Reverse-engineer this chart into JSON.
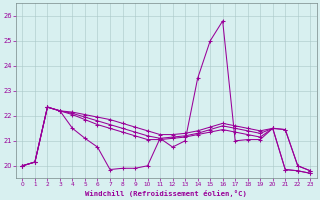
{
  "xlabel": "Windchill (Refroidissement éolien,°C)",
  "x_values": [
    0,
    1,
    2,
    3,
    4,
    5,
    6,
    7,
    8,
    9,
    10,
    11,
    12,
    13,
    14,
    15,
    16,
    17,
    18,
    19,
    20,
    21,
    22,
    23
  ],
  "s1": [
    20.0,
    20.15,
    22.35,
    22.2,
    21.5,
    21.1,
    20.75,
    19.85,
    19.9,
    19.9,
    20.0,
    21.1,
    20.75,
    21.0,
    23.5,
    25.0,
    25.8,
    21.0,
    21.05,
    21.05,
    21.5,
    19.85,
    19.8,
    19.7
  ],
  "s2": [
    20.0,
    20.15,
    22.35,
    22.2,
    22.05,
    21.85,
    21.65,
    21.5,
    21.35,
    21.2,
    21.05,
    21.05,
    21.1,
    21.15,
    21.25,
    21.35,
    21.45,
    21.35,
    21.25,
    21.15,
    21.5,
    19.85,
    19.8,
    19.7
  ],
  "s3": [
    20.0,
    20.15,
    22.35,
    22.2,
    22.1,
    21.95,
    21.8,
    21.65,
    21.5,
    21.35,
    21.2,
    21.1,
    21.15,
    21.2,
    21.3,
    21.45,
    21.6,
    21.5,
    21.4,
    21.3,
    21.5,
    21.45,
    20.0,
    19.8
  ],
  "s4": [
    20.0,
    20.15,
    22.35,
    22.2,
    22.15,
    22.05,
    21.95,
    21.85,
    21.7,
    21.55,
    21.4,
    21.25,
    21.25,
    21.3,
    21.4,
    21.55,
    21.7,
    21.6,
    21.5,
    21.4,
    21.5,
    21.45,
    20.0,
    19.8
  ],
  "line_color": "#990099",
  "bg_color": "#d8f0f0",
  "grid_color": "#aac8c8",
  "ylim": [
    19.5,
    26.5
  ],
  "yticks": [
    20,
    21,
    22,
    23,
    24,
    25,
    26
  ],
  "xlim": [
    -0.5,
    23.5
  ]
}
